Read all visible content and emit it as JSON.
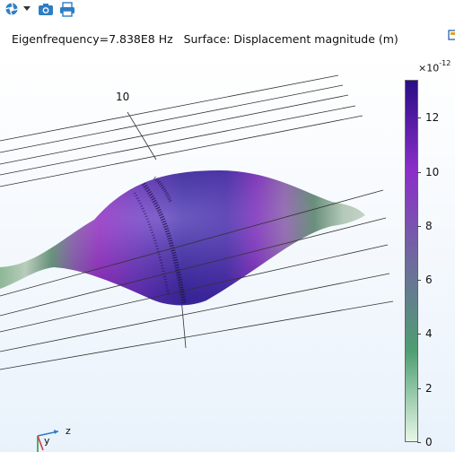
{
  "toolbar": {
    "icons": [
      "camera-shutter-icon",
      "chevron-down-icon",
      "snapshot-camera-icon",
      "print-icon"
    ]
  },
  "plot": {
    "title": "Eigenfrequency=7.838E8 Hz   Surface: Displacement magnitude (m)",
    "axis_tick_label": "10",
    "triad": {
      "z": "z",
      "y": "y"
    }
  },
  "colorbar": {
    "exponent_base": "×10",
    "exponent_power": "-12",
    "ticks": [
      "12",
      "10",
      "8",
      "6",
      "4",
      "2",
      "0"
    ],
    "min": 0,
    "max": 13.4,
    "colors": [
      "#e6f7e6",
      "#4f9e73",
      "#6f6a9e",
      "#8b2fc9",
      "#2a0d86"
    ]
  }
}
